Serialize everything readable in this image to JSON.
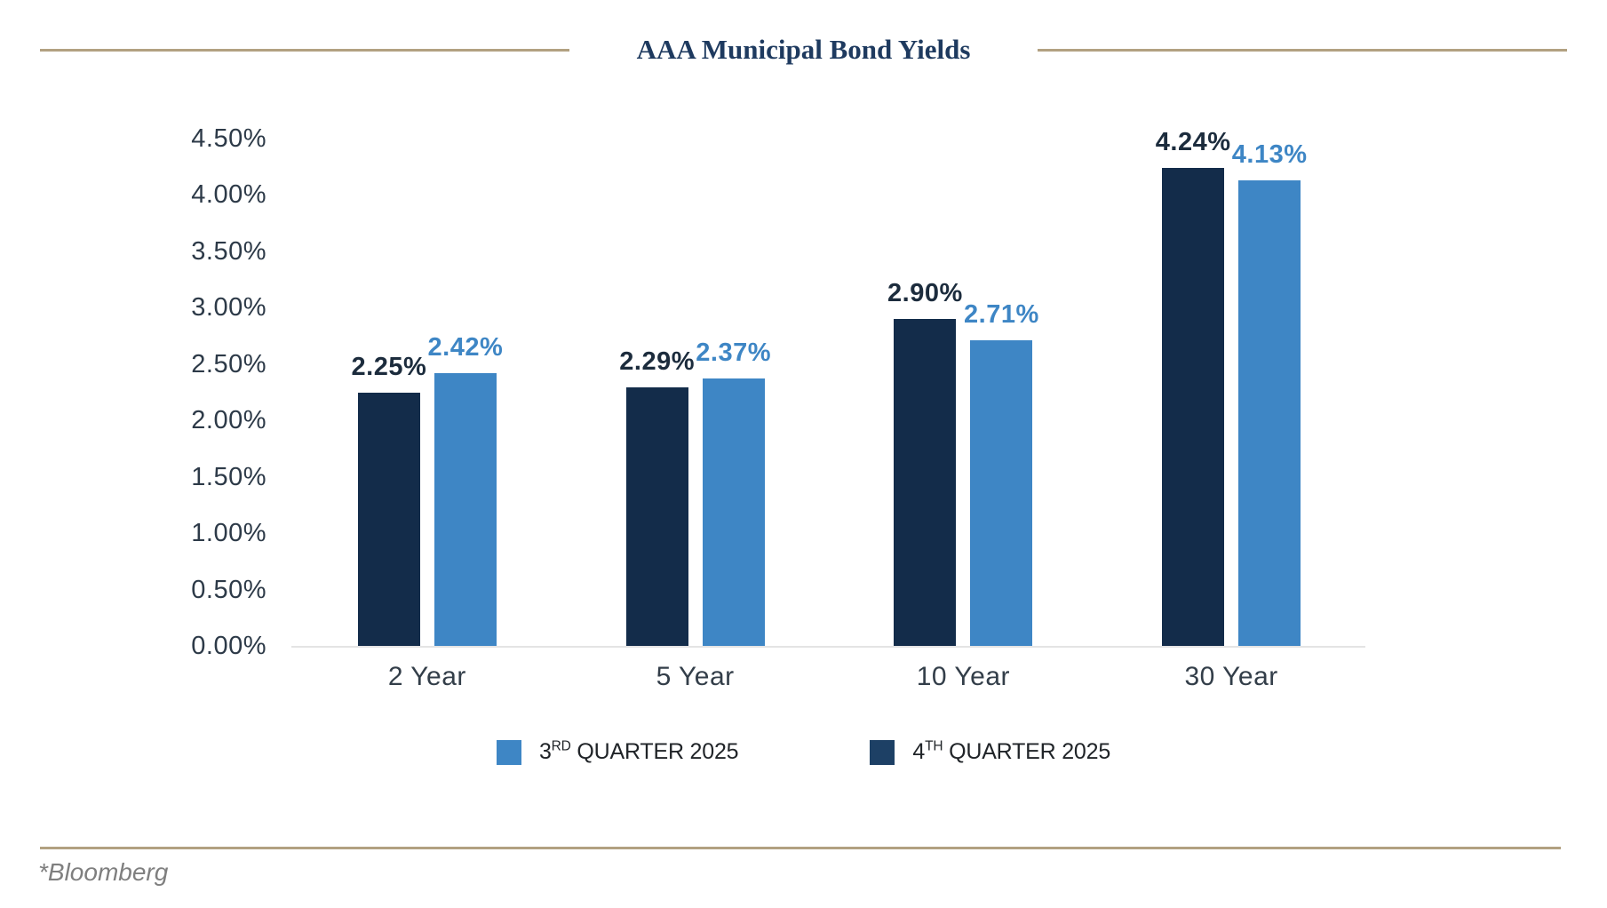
{
  "header": {
    "title": "AAA Municipal Bond Yields"
  },
  "colors": {
    "navy_bar": "#132c4a",
    "blue_bar": "#3e86c5",
    "navy_label": "#1c2c3d",
    "blue_label": "#3e86c5",
    "legend_navy": "#1d4065",
    "legend_blue": "#3e86c5",
    "title_navy": "#1e3a5f",
    "gold_rule": "#b2a181",
    "axis_text": "#2d3a48",
    "baseline_gray": "#e4e4e4",
    "footer_gray": "#7f7f7f"
  },
  "chart_data": {
    "type": "bar",
    "title": "AAA Municipal Bond Yields",
    "categories": [
      "2 Year",
      "5 Year",
      "10 Year",
      "30 Year"
    ],
    "series": [
      {
        "name": "4TH QUARTER 2025",
        "bar_color": "#132c4a",
        "label_color": "#1c2c3d",
        "values": [
          2.25,
          2.29,
          2.9,
          4.24
        ],
        "labels": [
          "2.25%",
          "2.29%",
          "2.90%",
          "4.24%"
        ]
      },
      {
        "name": "3RD QUARTER 2025",
        "bar_color": "#3e86c5",
        "label_color": "#3e86c5",
        "values": [
          2.42,
          2.37,
          2.71,
          4.13
        ],
        "labels": [
          "2.42%",
          "2.37%",
          "2.71%",
          "4.13%"
        ]
      }
    ],
    "y_axis": {
      "ticks": [
        "4.50%",
        "4.00%",
        "3.50%",
        "3.00%",
        "2.50%",
        "2.00%",
        "1.50%",
        "1.00%",
        "0.50%",
        "0.00%"
      ],
      "min": 0,
      "max": 4.5,
      "step": 0.5
    },
    "legend": [
      {
        "num": "3",
        "sup": "RD",
        "rest": " QUARTER 2025",
        "color": "#3e86c5"
      },
      {
        "num": "4",
        "sup": "TH",
        "rest": " QUARTER 2025",
        "color": "#1d4065"
      }
    ],
    "legend_position": "bottom",
    "grid": false,
    "xlabel": "",
    "ylabel": ""
  },
  "footer": {
    "source_note": "*Bloomberg"
  }
}
